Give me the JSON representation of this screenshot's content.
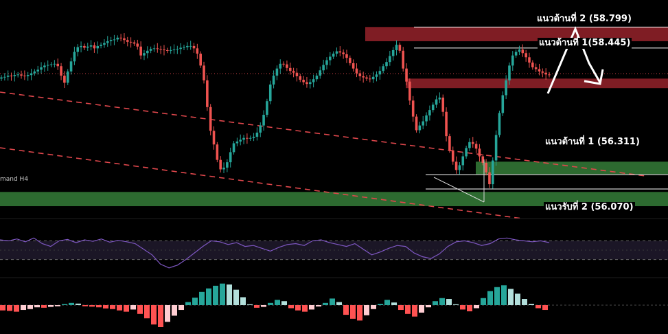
{
  "chart_data": {
    "type": "candlestick",
    "price_range": [
      55.78,
      59.0
    ],
    "main_candle_prices": [
      57.95,
      57.96,
      57.98,
      57.97,
      57.99,
      58.0,
      57.98,
      57.97,
      57.99,
      58.02,
      58.05,
      58.08,
      58.12,
      58.15,
      58.16,
      58.17,
      58.18,
      58.14,
      57.98,
      57.86,
      58.05,
      58.22,
      58.38,
      58.46,
      58.48,
      58.45,
      58.47,
      58.49,
      58.44,
      58.48,
      58.5,
      58.53,
      58.56,
      58.58,
      58.59,
      58.62,
      58.61,
      58.58,
      58.55,
      58.54,
      58.52,
      58.47,
      58.32,
      58.36,
      58.4,
      58.43,
      58.44,
      58.43,
      58.42,
      58.41,
      58.4,
      58.41,
      58.42,
      58.43,
      58.45,
      58.46,
      58.48,
      58.48,
      58.44,
      58.35,
      58.15,
      57.9,
      57.45,
      57.05,
      56.82,
      56.56,
      56.4,
      56.43,
      56.52,
      56.69,
      56.84,
      56.87,
      56.9,
      56.93,
      56.92,
      56.93,
      56.95,
      57.02,
      57.14,
      57.32,
      57.55,
      57.83,
      57.98,
      58.1,
      58.18,
      58.17,
      58.11,
      58.06,
      58.03,
      57.97,
      57.91,
      57.87,
      57.84,
      57.87,
      57.92,
      57.98,
      58.07,
      58.16,
      58.24,
      58.3,
      58.35,
      58.39,
      58.37,
      58.34,
      58.28,
      58.19,
      58.1,
      58.02,
      57.97,
      57.95,
      57.93,
      57.92,
      57.96,
      58.0,
      58.06,
      58.14,
      58.21,
      58.31,
      58.41,
      58.5,
      58.4,
      58.1,
      57.88,
      57.56,
      57.29,
      57.06,
      57.14,
      57.21,
      57.31,
      57.4,
      57.49,
      57.58,
      57.61,
      57.37,
      56.96,
      56.72,
      56.53,
      56.39,
      56.47,
      56.62,
      56.76,
      56.86,
      56.83,
      56.75,
      56.62,
      56.51,
      56.35,
      56.15,
      56.55,
      56.98,
      57.35,
      57.65,
      57.9,
      58.15,
      58.32,
      58.38,
      58.42,
      58.36,
      58.29,
      58.2,
      58.12,
      58.09,
      58.05,
      58.03,
      58.0,
      57.99
    ],
    "horizontal_levels": [
      {
        "label": "แนวต้านที่ 2 (58.799)",
        "value": 58.799
      },
      {
        "label": "แนวต้านที่ 1(58.445)",
        "value": 58.445
      },
      {
        "label": "แนวต้านที่ 1 (56.311)",
        "value": 56.311
      },
      {
        "label": "แนวรับที่ 2 (56.070)",
        "value": 56.07
      }
    ],
    "zones": [
      {
        "kind": "supply",
        "color": "#7f1d24",
        "low": 58.56,
        "high": 58.8
      },
      {
        "kind": "supply",
        "color": "#7f1d24",
        "low": 57.77,
        "high": 57.93
      },
      {
        "kind": "demand",
        "color": "#2d6a30",
        "low": 56.32,
        "high": 56.53
      },
      {
        "kind": "demand",
        "color": "#2d6a30",
        "low": 55.78,
        "high": 56.02,
        "tag": "mand H4"
      }
    ],
    "current_price_line": 58.01,
    "rsi": {
      "range": [
        0,
        100
      ],
      "levels": [
        70,
        30
      ],
      "values": [
        72,
        70,
        74,
        68,
        76,
        64,
        58,
        70,
        73,
        66,
        72,
        69,
        74,
        67,
        71,
        68,
        64,
        52,
        40,
        20,
        12,
        18,
        30,
        44,
        58,
        70,
        68,
        62,
        66,
        58,
        60,
        54,
        48,
        56,
        62,
        64,
        60,
        70,
        72,
        66,
        62,
        58,
        64,
        52,
        40,
        46,
        54,
        60,
        58,
        44,
        36,
        32,
        42,
        58,
        68,
        70,
        66,
        60,
        64,
        74,
        76,
        72,
        70,
        68,
        70,
        66
      ]
    },
    "histogram": {
      "values": [
        -0.24,
        -0.26,
        -0.3,
        -0.22,
        -0.18,
        -0.1,
        -0.12,
        -0.08,
        -0.05,
        0.05,
        0.1,
        0.07,
        -0.05,
        -0.07,
        -0.1,
        -0.15,
        -0.18,
        -0.24,
        -0.3,
        -0.2,
        -0.4,
        -0.6,
        -0.88,
        -1.0,
        -0.76,
        -0.48,
        -0.22,
        0.14,
        0.34,
        0.6,
        0.76,
        0.88,
        0.98,
        0.94,
        0.7,
        0.36,
        0.04,
        -0.12,
        -0.08,
        0.1,
        0.24,
        0.18,
        -0.14,
        -0.24,
        -0.3,
        -0.2,
        -0.06,
        0.1,
        0.3,
        0.14,
        -0.44,
        -0.62,
        -0.7,
        -0.46,
        -0.18,
        0.06,
        0.24,
        0.12,
        -0.22,
        -0.4,
        -0.52,
        -0.34,
        -0.1,
        0.18,
        0.32,
        0.28,
        0.04,
        -0.2,
        -0.28,
        -0.14,
        0.32,
        0.64,
        0.82,
        0.9,
        0.74,
        0.52,
        0.28,
        0.06,
        -0.14,
        -0.22
      ]
    }
  },
  "colors": {
    "background": "#000000",
    "bull": "#26a69a",
    "bear": "#ef5350",
    "supply_zone": "#7f1d24",
    "demand_zone": "#2d6a30",
    "trendline": "#e0474c",
    "rsi_line": "#7e57c2",
    "rsi_band": "#1b1626",
    "price_line": "#e0474c",
    "level_line": "#ffffff",
    "arrow": "#ffffff"
  }
}
